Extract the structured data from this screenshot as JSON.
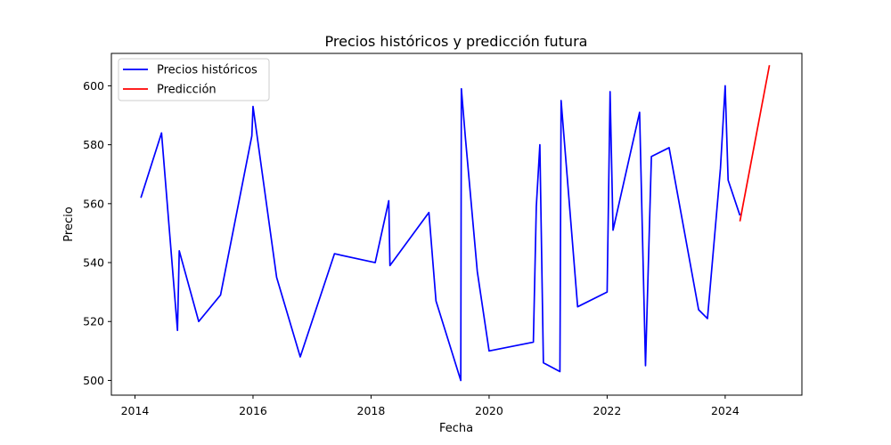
{
  "chart_data": {
    "type": "line",
    "title": "Precios históricos y predicción futura",
    "xlabel": "Fecha",
    "ylabel": "Precio",
    "xlim": [
      2013.6,
      2025.3
    ],
    "ylim": [
      495,
      611
    ],
    "xticks": [
      2014,
      2016,
      2018,
      2020,
      2022,
      2024
    ],
    "yticks": [
      500,
      520,
      540,
      560,
      580,
      600
    ],
    "grid": false,
    "legend_position": "top-left",
    "series": [
      {
        "name": "Precios históricos",
        "color": "#0000ff",
        "points": [
          [
            2014.1,
            562
          ],
          [
            2014.45,
            584
          ],
          [
            2014.72,
            517
          ],
          [
            2014.75,
            544
          ],
          [
            2015.08,
            520
          ],
          [
            2015.45,
            529
          ],
          [
            2015.98,
            583
          ],
          [
            2016.0,
            593
          ],
          [
            2016.4,
            535
          ],
          [
            2016.8,
            508
          ],
          [
            2017.38,
            543
          ],
          [
            2018.07,
            540
          ],
          [
            2018.3,
            561
          ],
          [
            2018.32,
            539
          ],
          [
            2018.98,
            557
          ],
          [
            2019.1,
            527
          ],
          [
            2019.52,
            500
          ],
          [
            2019.53,
            599
          ],
          [
            2019.6,
            582
          ],
          [
            2019.8,
            537
          ],
          [
            2020.0,
            510
          ],
          [
            2020.75,
            513
          ],
          [
            2020.8,
            559
          ],
          [
            2020.86,
            580
          ],
          [
            2020.92,
            506
          ],
          [
            2021.2,
            503
          ],
          [
            2021.22,
            595
          ],
          [
            2021.5,
            525
          ],
          [
            2022.0,
            530
          ],
          [
            2022.05,
            598
          ],
          [
            2022.1,
            551
          ],
          [
            2022.55,
            591
          ],
          [
            2022.65,
            505
          ],
          [
            2022.75,
            576
          ],
          [
            2023.05,
            579
          ],
          [
            2023.55,
            524
          ],
          [
            2023.7,
            521
          ],
          [
            2023.92,
            572
          ],
          [
            2024.0,
            600
          ],
          [
            2024.05,
            568
          ],
          [
            2024.25,
            556
          ]
        ]
      },
      {
        "name": "Predicción",
        "color": "#ff0000",
        "points": [
          [
            2024.25,
            554
          ],
          [
            2024.75,
            607
          ]
        ]
      }
    ]
  }
}
